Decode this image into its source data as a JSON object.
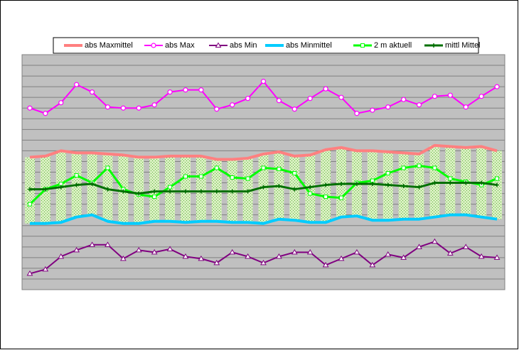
{
  "chart_data": {
    "type": "line",
    "categories": [
      null,
      null,
      null,
      null,
      null,
      null,
      null,
      null,
      null,
      null,
      null,
      null,
      null,
      null,
      null,
      null,
      null,
      null,
      null,
      null,
      null,
      null,
      null,
      null,
      null,
      null,
      null,
      null,
      null,
      null,
      null
    ],
    "ylim": [
      0,
      22
    ],
    "yticks": [
      0,
      1,
      2,
      3,
      4,
      5,
      6,
      7,
      8,
      9,
      10,
      11,
      12,
      13,
      14,
      15,
      16,
      17,
      18,
      19,
      20,
      21,
      22
    ],
    "grid": true,
    "high_low_bars": true,
    "series": [
      {
        "name": "abs Maxmittel",
        "color": "#ff8080",
        "marker": "none",
        "width": 4,
        "values": [
          12.4,
          12.5,
          13.0,
          12.8,
          12.8,
          12.7,
          12.6,
          12.4,
          12.4,
          12.5,
          12.5,
          12.5,
          12.2,
          12.2,
          12.3,
          12.7,
          12.9,
          12.5,
          12.6,
          13.1,
          13.3,
          13.0,
          13.0,
          12.9,
          12.8,
          12.7,
          13.5,
          13.4,
          13.3,
          13.4,
          13.0
        ]
      },
      {
        "name": "abs Max",
        "color": "#ff00ff",
        "marker": "circle",
        "width": 2,
        "values": [
          17.0,
          16.5,
          17.5,
          19.2,
          18.5,
          17.1,
          17.0,
          17.0,
          17.3,
          18.5,
          18.7,
          18.7,
          16.9,
          17.3,
          17.9,
          19.5,
          17.7,
          16.9,
          17.9,
          18.8,
          18.0,
          16.5,
          16.8,
          17.1,
          17.8,
          17.3,
          18.1,
          18.2,
          17.1,
          18.1,
          19.0
        ]
      },
      {
        "name": "abs Min",
        "color": "#800080",
        "marker": "triangle",
        "width": 2,
        "values": [
          1.5,
          1.9,
          3.1,
          3.7,
          4.2,
          4.2,
          2.9,
          3.7,
          3.5,
          3.8,
          3.1,
          2.9,
          2.5,
          3.5,
          3.1,
          2.5,
          3.1,
          3.5,
          3.5,
          2.3,
          2.9,
          3.5,
          2.3,
          3.3,
          3.0,
          4.0,
          4.5,
          3.4,
          4.0,
          3.1,
          3.0
        ]
      },
      {
        "name": "abs Minmittel",
        "color": "#00ccff",
        "marker": "none",
        "width": 4,
        "values": [
          6.2,
          6.2,
          6.3,
          6.8,
          7.0,
          6.4,
          6.2,
          6.2,
          6.4,
          6.4,
          6.3,
          6.4,
          6.4,
          6.3,
          6.3,
          6.2,
          6.6,
          6.5,
          6.3,
          6.3,
          6.8,
          6.9,
          6.5,
          6.5,
          6.6,
          6.6,
          6.8,
          7.0,
          7.0,
          6.8,
          6.6
        ]
      },
      {
        "name": "2 m aktuell",
        "color": "#00ff00",
        "marker": "square",
        "width": 3,
        "values": [
          8.0,
          9.4,
          9.9,
          10.7,
          10.0,
          11.4,
          9.4,
          8.9,
          8.7,
          9.6,
          10.6,
          10.6,
          11.4,
          10.5,
          10.4,
          11.4,
          11.3,
          10.9,
          9.0,
          8.7,
          8.6,
          10.0,
          10.2,
          10.9,
          11.4,
          11.6,
          11.4,
          10.4,
          10.1,
          9.8,
          10.4
        ]
      },
      {
        "name": "mittl Mittel",
        "color": "#007000",
        "marker": "plus",
        "width": 3,
        "values": [
          9.4,
          9.4,
          9.6,
          9.8,
          9.9,
          9.4,
          9.2,
          9.0,
          9.2,
          9.2,
          9.2,
          9.2,
          9.2,
          9.2,
          9.2,
          9.6,
          9.7,
          9.4,
          9.6,
          9.8,
          9.9,
          9.9,
          9.9,
          9.8,
          9.7,
          9.6,
          10.0,
          10.0,
          10.0,
          10.0,
          9.8
        ]
      }
    ]
  }
}
